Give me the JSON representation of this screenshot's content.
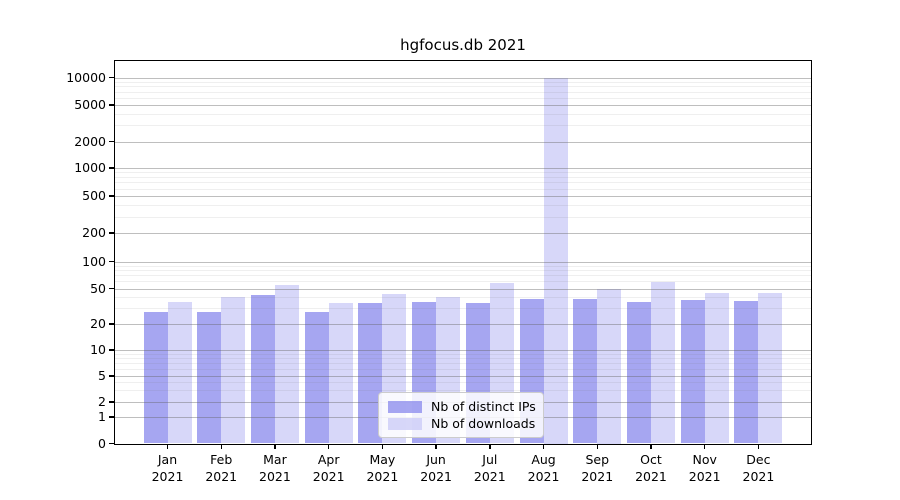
{
  "chart_data": {
    "type": "bar",
    "title": "hgfocus.db 2021",
    "categories": [
      "Jan",
      "Feb",
      "Mar",
      "Apr",
      "May",
      "Jun",
      "Jul",
      "Aug",
      "Sep",
      "Oct",
      "Nov",
      "Dec"
    ],
    "year": "2021",
    "series": [
      {
        "name": "Nb of distinct IPs",
        "color": "#8484ec",
        "values": [
          27,
          27,
          42,
          27,
          34,
          35,
          34,
          38,
          38,
          35,
          37,
          36
        ]
      },
      {
        "name": "Nb of downloads",
        "color": "#c8c8f6",
        "values": [
          35,
          40,
          55,
          34,
          43,
          40,
          57,
          10000,
          50,
          59,
          44,
          45
        ]
      }
    ],
    "yscale": "log with zero baseline",
    "yticks": [
      10000,
      5000,
      2000,
      1000,
      500,
      200,
      100,
      50,
      20,
      10,
      5,
      2,
      1,
      0
    ],
    "grid": true,
    "legend": {
      "position": "lower-center-inside"
    }
  }
}
